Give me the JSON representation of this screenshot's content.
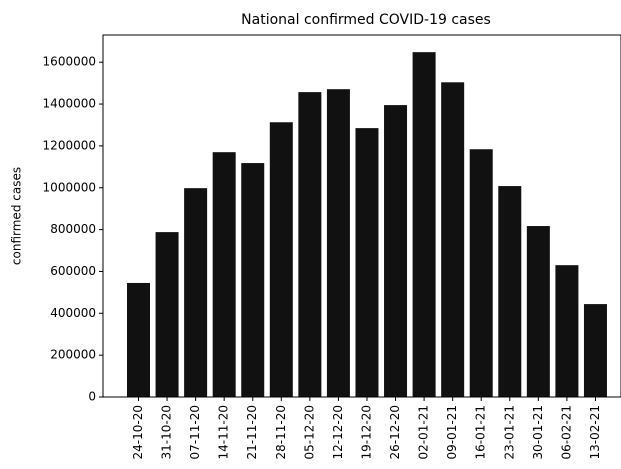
{
  "chart_data": {
    "type": "bar",
    "title": "National confirmed COVID-19 cases",
    "y_label": "confirmed cases",
    "categories": [
      "24-10-20",
      "31-10-20",
      "07-11-20",
      "14-11-20",
      "21-11-20",
      "28-11-20",
      "05-12-20",
      "12-12-20",
      "19-12-20",
      "26-12-20",
      "02-01-21",
      "09-01-21",
      "16-01-21",
      "23-01-21",
      "30-01-21",
      "06-02-21",
      "13-02-21"
    ],
    "values": [
      545000,
      788000,
      998000,
      1170000,
      1118000,
      1313000,
      1457000,
      1471000,
      1285000,
      1395000,
      1648000,
      1504000,
      1184000,
      1008000,
      817000,
      630000,
      444000
    ],
    "color": "#111111",
    "ylim": [
      0,
      1730000
    ],
    "yticks": [
      0,
      200000,
      400000,
      600000,
      800000,
      1000000,
      1200000,
      1400000,
      1600000
    ],
    "grid": false
  }
}
